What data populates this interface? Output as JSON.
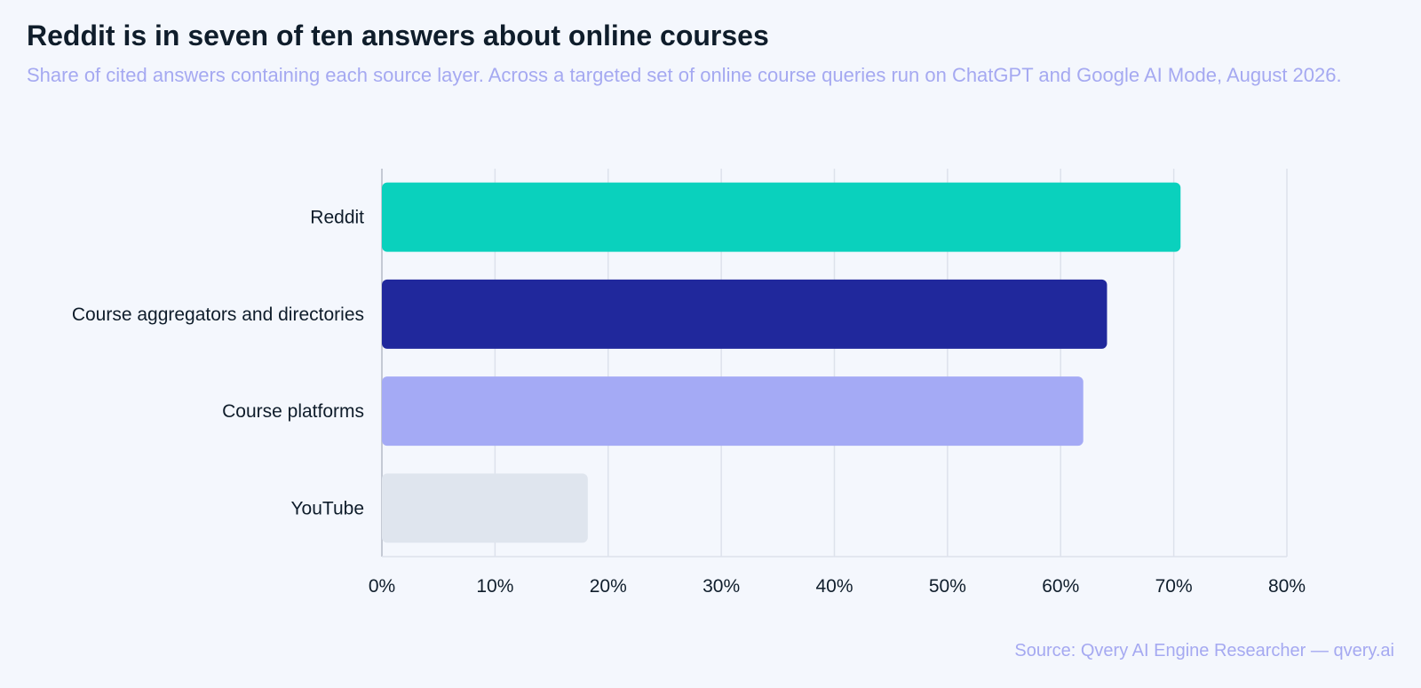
{
  "chart_data": {
    "type": "bar",
    "orientation": "horizontal",
    "title": "Reddit is in seven of ten answers about online courses",
    "subtitle": "Share of cited answers containing each source layer. Across a targeted set of online course queries run on ChatGPT and Google AI Mode, August 2026.",
    "categories": [
      "Reddit",
      "Course aggregators and directories",
      "Course platforms",
      "YouTube"
    ],
    "values": [
      70.6,
      64.1,
      62.0,
      18.2
    ],
    "colors": [
      "#0ad1bd",
      "#20289c",
      "#a4aaf5",
      "#dfe5ee"
    ],
    "xlim": [
      0,
      80
    ],
    "xticks": [
      0,
      10,
      20,
      30,
      40,
      50,
      60,
      70,
      80
    ],
    "xtick_labels": [
      "0%",
      "10%",
      "20%",
      "30%",
      "40%",
      "50%",
      "60%",
      "70%",
      "80%"
    ],
    "xlabel": "",
    "ylabel": "",
    "grid": "vertical",
    "legend": "none"
  },
  "source": "Source: Qvery AI Engine Researcher — qvery.ai",
  "colors": {
    "background": "#f4f7fd",
    "title": "#0f1d2b",
    "subtitle": "#a5a9f1",
    "grid": "#dde2ec",
    "axis": "#c4c9d4"
  }
}
